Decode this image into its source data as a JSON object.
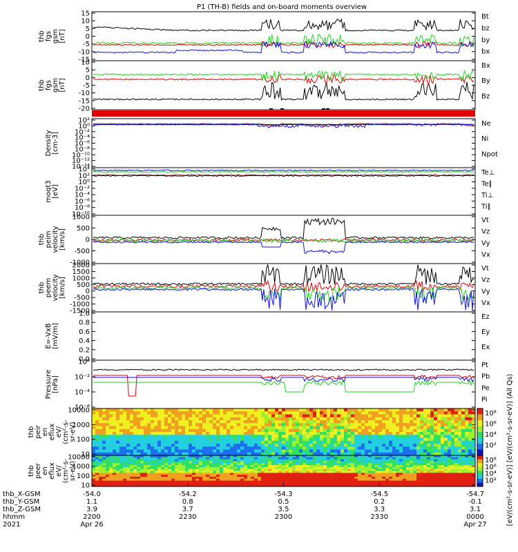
{
  "title": "P1 (TH-B) fields and on-board moments overview",
  "colors": {
    "black": "#000000",
    "red": "#e00000",
    "green": "#1fd31f",
    "blue": "#1010e0",
    "yellow": "#ffff00"
  },
  "panels": [
    {
      "id": "fgs",
      "label": [
        "thb",
        "fgs",
        "gsm",
        "[nT]"
      ],
      "yticks": [
        "15",
        "10",
        "5",
        "0",
        "-5",
        "-10",
        "-15"
      ],
      "legend": [
        {
          "text": "Bt",
          "color": "#000000"
        },
        {
          "text": "bz",
          "color": "#e00000"
        },
        {
          "text": "by",
          "color": "#1fd31f"
        },
        {
          "text": "bx",
          "color": "#1010e0"
        }
      ]
    },
    {
      "id": "fgl",
      "label": [
        "thb",
        "fgs",
        "gsm",
        "[nT]"
      ],
      "yticks": [
        "10",
        "5",
        "0",
        "-5",
        "-10",
        "-15",
        "-20"
      ],
      "legend": [
        {
          "text": "Bx",
          "color": "#000000"
        },
        {
          "text": "By",
          "color": "#e00000"
        },
        {
          "text": "Bz",
          "color": "#1fd31f"
        }
      ]
    },
    {
      "id": "density",
      "label": [
        "Density",
        "[cm-3]"
      ],
      "yticks": [
        "10²",
        "10⁰",
        "10⁻²",
        "10⁻⁴",
        "10⁻⁶",
        "10⁻⁸",
        "10⁻¹⁰",
        "10⁻¹²",
        "10⁻¹⁴"
      ],
      "legend": [
        {
          "text": "Ne",
          "color": "#e00000"
        },
        {
          "text": "Ni",
          "color": "#000000"
        },
        {
          "text": "Npot",
          "color": "#1010e0"
        }
      ]
    },
    {
      "id": "temp",
      "label": [
        "moqt3",
        "[eV]"
      ],
      "yticks": [
        "10⁴",
        "10²",
        "10⁰",
        "10⁻²",
        "10⁻⁴",
        "10⁻⁶",
        "10⁻⁸",
        "10⁻¹⁰"
      ],
      "legend": [
        {
          "text": "Te⊥",
          "color": "#e00000"
        },
        {
          "text": "Te∥",
          "color": "#000000"
        },
        {
          "text": "Ti⊥",
          "color": "#1010e0"
        },
        {
          "text": "Ti∥",
          "color": "#1fd31f"
        }
      ]
    },
    {
      "id": "peim",
      "label": [
        "thb",
        "peim",
        "velocity",
        "[km/s]"
      ],
      "yticks": [
        "1000",
        "500",
        "0",
        "-500",
        "-1000"
      ],
      "legend": [
        {
          "text": "Vt",
          "color": "#000000"
        },
        {
          "text": "Vz",
          "color": "#e00000"
        },
        {
          "text": "Vy",
          "color": "#1fd31f"
        },
        {
          "text": "Vx",
          "color": "#1010e0"
        }
      ]
    },
    {
      "id": "peem",
      "label": [
        "thb",
        "peem",
        "velocity",
        "[km/s]"
      ],
      "yticks": [
        "2000",
        "1500",
        "1000",
        "500",
        "0",
        "-500",
        "-1000",
        "-1500"
      ],
      "legend": [
        {
          "text": "Vt",
          "color": "#000000"
        },
        {
          "text": "Vz",
          "color": "#e00000"
        },
        {
          "text": "Vy",
          "color": "#1fd31f"
        },
        {
          "text": "Vx",
          "color": "#1010e0"
        }
      ]
    },
    {
      "id": "efield",
      "label": [
        "E=-VxB",
        "[mV/m]"
      ],
      "yticks": [
        "1.0",
        "0.8",
        "0.6",
        "0.4",
        "0.2",
        "0.0"
      ],
      "legend": [
        {
          "text": "Ez",
          "color": "#e00000"
        },
        {
          "text": "Ey",
          "color": "#1fd31f"
        },
        {
          "text": "Ex",
          "color": "#1010e0"
        }
      ]
    },
    {
      "id": "pressure",
      "label": [
        "Pressure",
        "[nPa]"
      ],
      "yticks": [
        "10⁰",
        "10⁻²",
        "10⁻⁴",
        "10⁻⁶"
      ],
      "legend": [
        {
          "text": "Pt",
          "color": "#000000"
        },
        {
          "text": "Pb",
          "color": "#e00000"
        },
        {
          "text": "Pe",
          "color": "#1fd31f"
        },
        {
          "text": "Pi",
          "color": "#1010e0"
        }
      ]
    },
    {
      "id": "peir",
      "label": [
        "thb",
        "peir",
        "en",
        "eflux",
        "eV/",
        "(cm²-s-",
        "sr-eV)"
      ],
      "yticks": [
        "10000",
        "1000",
        "100",
        "10"
      ]
    },
    {
      "id": "peer",
      "label": [
        "thb",
        "peer",
        "en",
        "eflux",
        "eV/",
        "(cm²-s-",
        "sr-eV)"
      ],
      "yticks": [
        "10000",
        "1000",
        "100",
        "10"
      ]
    }
  ],
  "colorbar": {
    "label": "[eV/(cm²-s-sr-eV)] [eV/(cm²-s-sr-eV)] (All Qs)",
    "ticks_top": [
      "10⁸",
      "10⁶",
      "10⁴",
      "10²"
    ],
    "ticks_bottom": [
      "10⁸",
      "10⁶",
      "10⁴",
      "10²"
    ]
  },
  "xaxis": {
    "row_labels": [
      "thb_X-GSM",
      "thb_Y-GSM",
      "thb_Z-GSM",
      "hhmm",
      "2021"
    ],
    "columns": [
      {
        "x": "-54.0",
        "y": "1.1",
        "z": "3.9",
        "hhmm": "2200",
        "date": "Apr 26"
      },
      {
        "x": "-54.2",
        "y": "0.8",
        "z": "3.7",
        "hhmm": "2230",
        "date": ""
      },
      {
        "x": "-54.3",
        "y": "0.5",
        "z": "3.5",
        "hhmm": "2300",
        "date": ""
      },
      {
        "x": "-54.5",
        "y": "0.2",
        "z": "3.3",
        "hhmm": "2330",
        "date": ""
      },
      {
        "x": "-54.7",
        "y": "-0.1",
        "z": "3.1",
        "hhmm": "0000",
        "date": "Apr 27"
      }
    ]
  }
}
